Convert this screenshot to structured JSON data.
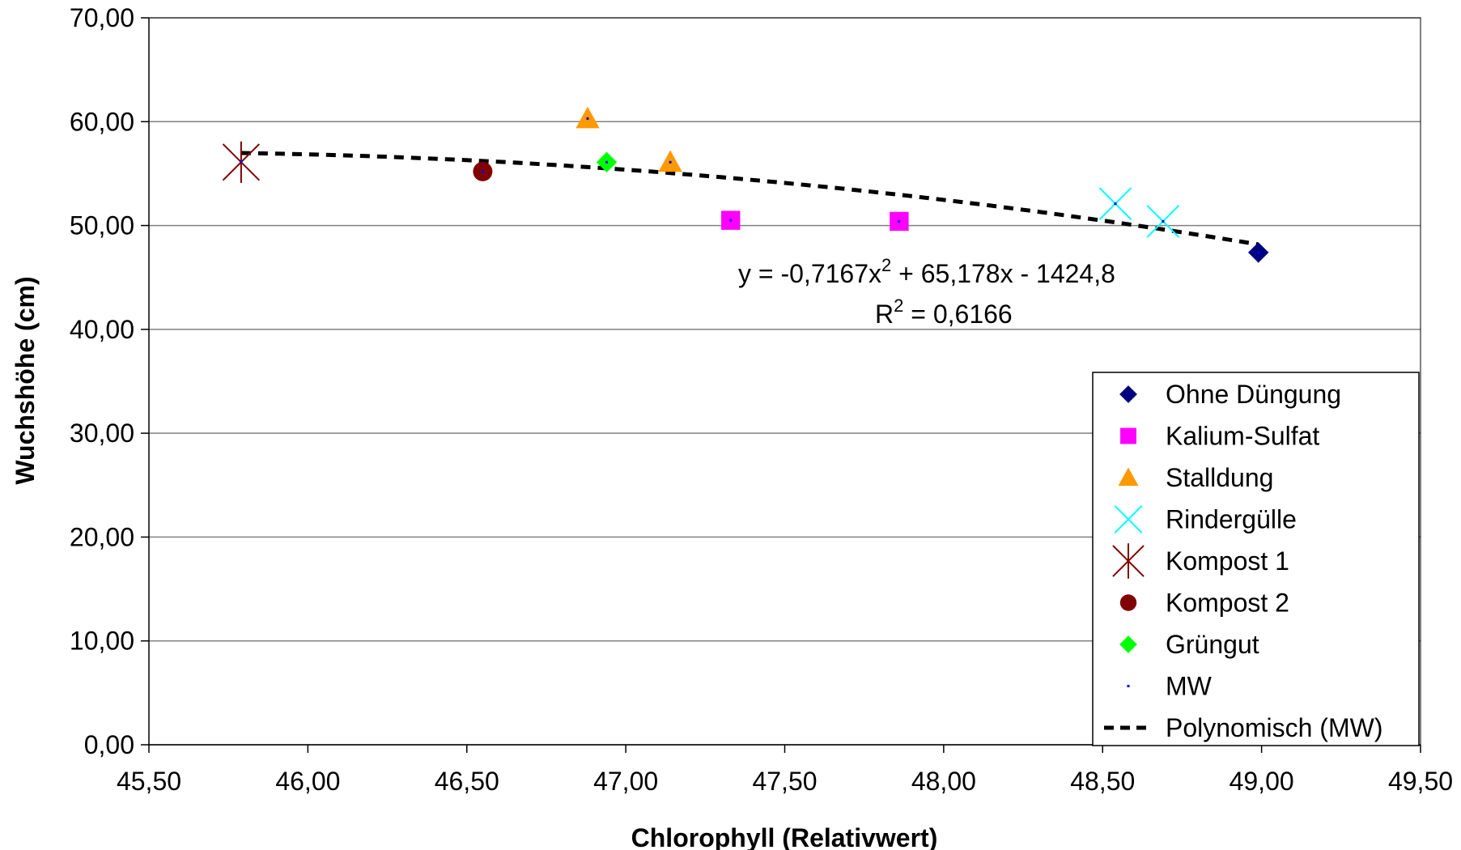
{
  "chart_data": {
    "type": "scatter",
    "title": "",
    "xlabel": "Chlorophyll (Relativwert)",
    "ylabel": "Wuchshöhe (cm)",
    "xlim": [
      45.5,
      49.5
    ],
    "ylim": [
      0,
      70
    ],
    "x_ticks": [
      "45,50",
      "46,00",
      "46,50",
      "47,00",
      "47,50",
      "48,00",
      "48,50",
      "49,00",
      "49,50"
    ],
    "y_ticks": [
      "0,00",
      "10,00",
      "20,00",
      "30,00",
      "40,00",
      "50,00",
      "60,00",
      "70,00"
    ],
    "grid": "horizontal",
    "legend_position": "right",
    "series": [
      {
        "name": "Ohne Düngung",
        "marker": "diamond",
        "color": "#000080",
        "points": [
          [
            48.99,
            47.4
          ]
        ]
      },
      {
        "name": "Kalium-Sulfat",
        "marker": "square",
        "color": "#FF00FF",
        "points": [
          [
            47.33,
            50.5
          ],
          [
            47.86,
            50.4
          ]
        ]
      },
      {
        "name": "Stalldung",
        "marker": "triangle",
        "color": "#FF9900",
        "points": [
          [
            46.88,
            60.3
          ],
          [
            47.14,
            56.1
          ]
        ]
      },
      {
        "name": "Rindergülle",
        "marker": "x",
        "color": "#00FFFF",
        "points": [
          [
            48.54,
            52.1
          ],
          [
            48.69,
            50.4
          ]
        ]
      },
      {
        "name": "Kompost 1",
        "marker": "star",
        "color": "#800000",
        "points": [
          [
            45.79,
            56.1
          ]
        ]
      },
      {
        "name": "Kompost 2",
        "marker": "circle",
        "color": "#800000",
        "points": [
          [
            46.55,
            55.2
          ]
        ]
      },
      {
        "name": "Grüngut",
        "marker": "diamond",
        "color": "#00FF00",
        "points": [
          [
            46.94,
            56.1
          ]
        ]
      },
      {
        "name": "MW",
        "marker": "dot",
        "color": "#0000FF",
        "points": [
          [
            45.79,
            56.1
          ],
          [
            46.55,
            55.2
          ],
          [
            46.88,
            60.3
          ],
          [
            46.94,
            56.1
          ],
          [
            47.14,
            56.1
          ],
          [
            47.33,
            50.5
          ],
          [
            47.86,
            50.4
          ],
          [
            48.54,
            52.1
          ],
          [
            48.69,
            50.4
          ],
          [
            48.99,
            47.4
          ]
        ]
      },
      {
        "name": "Polynomisch (MW)",
        "marker": "dashed-line",
        "color": "#000000",
        "trend": {
          "a": -0.7167,
          "b": 65.178,
          "c": -1424.8,
          "x_range": [
            45.79,
            48.99
          ]
        }
      }
    ],
    "annotations": {
      "equation_prefix": "y = -0,7167x",
      "equation_suffix": " + 65,178x - 1424,8",
      "r2_prefix": "R",
      "r2_suffix": " = 0,6166",
      "superscript": "2"
    }
  }
}
